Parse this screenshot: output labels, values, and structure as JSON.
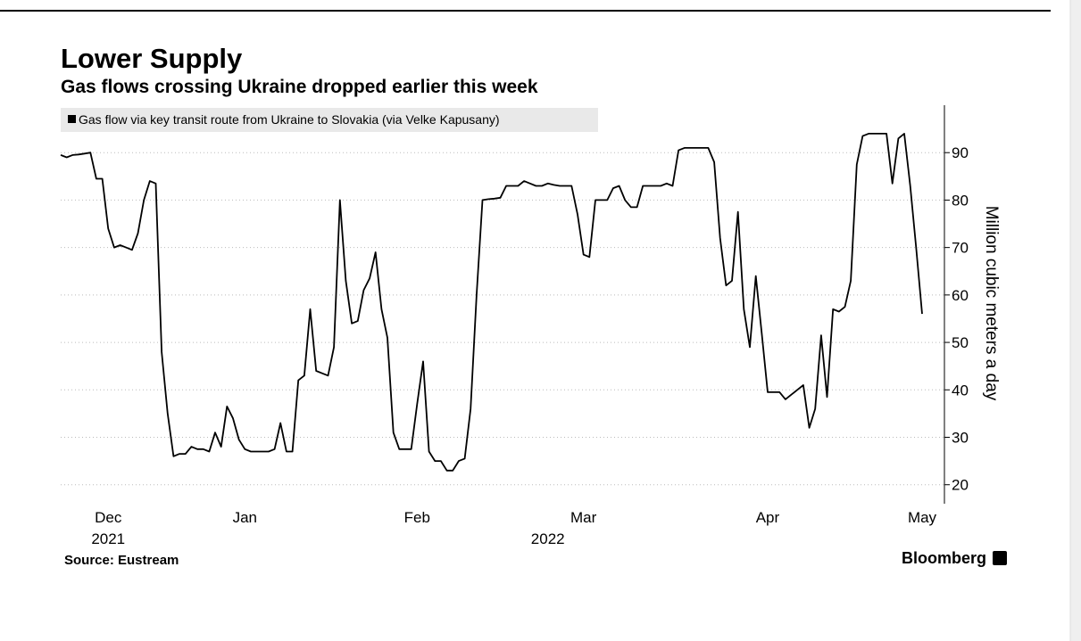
{
  "chart_data": {
    "type": "line",
    "title": "Lower Supply",
    "subtitle": "Gas flows crossing Ukraine dropped earlier this week",
    "y_axis_label": "Million cubic meters a day",
    "source": "Source: Eustream",
    "brand": "Bloomberg",
    "legend_position": "top-left",
    "grid": true,
    "ylim": [
      16,
      100
    ],
    "yticks": [
      20,
      30,
      40,
      50,
      60,
      70,
      80,
      90
    ],
    "categories": [
      null,
      null,
      null,
      null,
      null,
      null,
      null,
      null,
      "Dec",
      null,
      null,
      null,
      null,
      null,
      null,
      null,
      null,
      null,
      null,
      null,
      null,
      null,
      null,
      null,
      null,
      null,
      null,
      null,
      null,
      null,
      null,
      "Jan",
      null,
      null,
      null,
      null,
      null,
      null,
      null,
      null,
      null,
      null,
      null,
      null,
      null,
      null,
      null,
      null,
      null,
      null,
      null,
      null,
      null,
      null,
      null,
      null,
      null,
      null,
      null,
      null,
      "Feb",
      null,
      null,
      null,
      null,
      null,
      null,
      null,
      null,
      null,
      null,
      null,
      null,
      null,
      null,
      null,
      null,
      null,
      null,
      null,
      null,
      null,
      null,
      null,
      null,
      null,
      null,
      null,
      "Mar",
      null,
      null,
      null,
      null,
      null,
      null,
      null,
      null,
      null,
      null,
      null,
      null,
      null,
      null,
      null,
      null,
      null,
      null,
      null,
      null,
      null,
      null,
      null,
      null,
      null,
      null,
      null,
      null,
      null,
      null,
      "Apr",
      null,
      null,
      null,
      null,
      null,
      null,
      null,
      null,
      null,
      null,
      null,
      null,
      null,
      null,
      null,
      null,
      null,
      null,
      null,
      null,
      null,
      null,
      null,
      null,
      null,
      "May"
    ],
    "category_years": [
      null,
      null,
      null,
      null,
      null,
      null,
      null,
      null,
      "2021",
      null,
      null,
      null,
      null,
      null,
      null,
      null,
      null,
      null,
      null,
      null,
      null,
      null,
      null,
      null,
      null,
      null,
      null,
      null,
      null,
      null,
      null,
      null,
      null,
      null,
      null,
      null,
      null,
      null,
      null,
      null,
      null,
      null,
      null,
      null,
      null,
      null,
      null,
      null,
      null,
      null,
      null,
      null,
      null,
      null,
      null,
      null,
      null,
      null,
      null,
      null,
      null,
      null,
      null,
      null,
      null,
      null,
      null,
      null,
      null,
      null,
      null,
      null,
      null,
      null,
      null,
      null,
      null,
      null,
      null,
      null,
      null,
      null,
      "2022",
      null,
      null,
      null,
      null,
      null,
      null,
      null,
      null,
      null,
      null,
      null,
      null,
      null,
      null,
      null,
      null,
      null,
      null,
      null,
      null,
      null,
      null,
      null,
      null,
      null,
      null,
      null,
      null,
      null,
      null,
      null,
      null,
      null,
      null,
      null,
      null,
      null,
      null,
      null,
      null,
      null,
      null,
      null,
      null,
      null,
      null,
      null,
      null,
      null,
      null,
      null,
      null,
      null,
      null,
      null,
      null,
      null,
      null,
      null,
      null,
      null,
      null,
      null
    ],
    "series": [
      {
        "name": "Gas flow via key transit route from Ukraine to Slovakia (via Velke Kapusany)",
        "color": "#000000",
        "values": [
          89.5,
          89,
          89.5,
          89.6,
          89.8,
          90,
          84.5,
          84.5,
          74,
          70,
          70.5,
          70,
          69.5,
          73,
          80,
          84,
          83.5,
          48,
          35,
          26,
          26.5,
          26.5,
          28,
          27.5,
          27.5,
          27,
          31,
          28,
          36.5,
          34,
          29.5,
          27.5,
          27,
          27,
          27,
          27,
          27.5,
          33,
          27,
          27,
          42,
          43,
          57,
          44,
          43.5,
          43,
          49,
          80,
          63,
          54,
          54.5,
          61,
          63.5,
          69,
          57,
          51,
          31,
          27.5,
          27.5,
          27.5,
          37,
          46,
          27,
          25,
          25,
          23,
          23,
          25,
          25.5,
          36,
          60,
          80,
          80.2,
          80.3,
          80.5,
          83,
          83,
          83,
          84,
          83.5,
          83,
          83,
          83.5,
          83.2,
          83,
          83,
          83,
          77,
          68.5,
          68,
          80,
          80,
          80,
          82.5,
          83,
          80,
          78.5,
          78.5,
          83,
          83,
          83,
          83,
          83.5,
          83,
          90.5,
          91,
          91,
          91,
          91,
          91,
          88,
          72,
          62,
          63,
          77.5,
          57,
          49,
          64,
          52,
          39.5,
          39.5,
          39.5,
          38,
          39,
          40,
          41,
          32,
          36,
          51.5,
          38.5,
          57,
          56.5,
          57.5,
          63,
          87.5,
          93.5,
          94,
          94,
          94,
          94,
          83.5,
          93,
          94,
          83,
          70,
          56
        ]
      }
    ]
  }
}
